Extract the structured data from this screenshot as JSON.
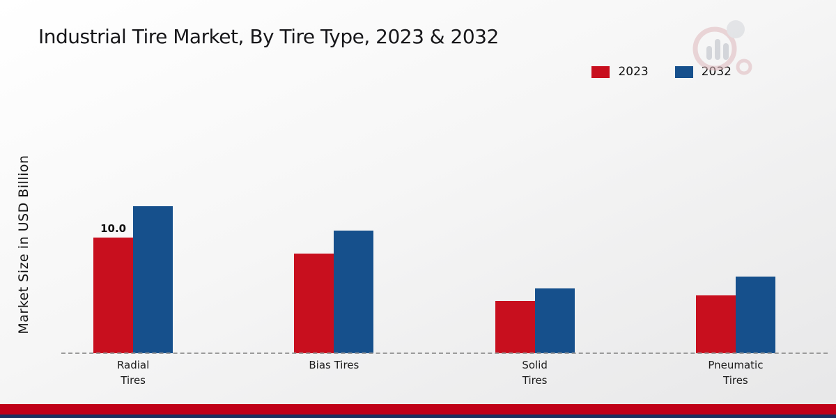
{
  "title": "Industrial Tire Market, By Tire Type, 2023 & 2032",
  "ylabel": "Market Size in USD Billion",
  "legend": [
    {
      "label": "2023",
      "color": "#c80f1e"
    },
    {
      "label": "2032",
      "color": "#16508c"
    }
  ],
  "footer": {
    "red_color": "#c00018",
    "navy_color": "#1b2f5e"
  },
  "chart_data": {
    "type": "bar",
    "title": "Industrial Tire Market, By Tire Type, 2023 & 2032",
    "xlabel": "",
    "ylabel": "Market Size in USD Billion",
    "categories": [
      "Radial Tires",
      "Bias Tires",
      "Solid Tires",
      "Pneumatic Tires"
    ],
    "category_lines": [
      [
        "Radial",
        "Tires"
      ],
      [
        "Bias Tires"
      ],
      [
        "Solid",
        "Tires"
      ],
      [
        "Pneumatic",
        "Tires"
      ]
    ],
    "series": [
      {
        "name": "2023",
        "color": "#c80f1e",
        "values": [
          10.0,
          8.6,
          4.5,
          5.0
        ]
      },
      {
        "name": "2032",
        "color": "#16508c",
        "values": [
          12.7,
          10.6,
          5.6,
          6.6
        ]
      }
    ],
    "bar_labels": [
      {
        "series": "2023",
        "category": "Radial Tires",
        "text": "10.0"
      }
    ],
    "ylim": [
      0,
      14
    ],
    "grid": false,
    "legend_position": "top-right"
  }
}
